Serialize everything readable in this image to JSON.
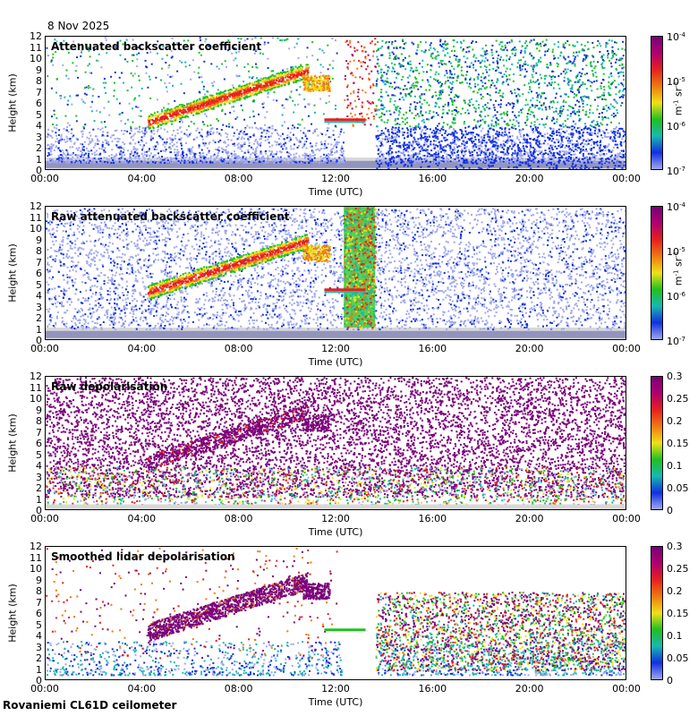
{
  "date": "8 Nov 2025",
  "station": "Rovaniemi CL61D ceilometer",
  "colors": {
    "purple": "#7a007a",
    "magenta": "#b0006e",
    "red": "#e8201e",
    "orange": "#f07a10",
    "yellow": "#f0e018",
    "green": "#20c020",
    "cyan": "#18b8b0",
    "blue": "#1030e0",
    "navy": "#101890",
    "lightblue": "#a0a8f0",
    "gray": "#d8d8d8"
  },
  "chart_data": [
    {
      "type": "heatmap",
      "title": "Attenuated backscatter coefficient",
      "xlabel": "Time (UTC)",
      "ylabel": "Height (km)",
      "x_ticks": [
        "00:00",
        "04:00",
        "08:00",
        "12:00",
        "16:00",
        "20:00",
        "00:00"
      ],
      "y_ticks": [
        "0",
        "1",
        "2",
        "3",
        "4",
        "5",
        "6",
        "7",
        "8",
        "9",
        "10",
        "11",
        "12"
      ],
      "ylim": [
        0,
        12
      ],
      "colorbar": {
        "scale": "log",
        "range": [
          1e-07,
          0.0001
        ],
        "labels": [
          {
            "base": "10",
            "exp": "-4"
          },
          {
            "base": "10",
            "exp": "-5"
          },
          {
            "base": "10",
            "exp": "-6"
          },
          {
            "base": "10",
            "exp": "-7"
          }
        ],
        "unit": {
          "m": "m",
          "m_exp": "-1",
          "sr": "sr",
          "sr_exp": "-1"
        }
      }
    },
    {
      "type": "heatmap",
      "title": "Raw attenuated backscatter coefficient",
      "xlabel": "Time (UTC)",
      "ylabel": "Height (km)",
      "x_ticks": [
        "00:00",
        "04:00",
        "08:00",
        "12:00",
        "16:00",
        "20:00",
        "00:00"
      ],
      "y_ticks": [
        "0",
        "1",
        "2",
        "3",
        "4",
        "5",
        "6",
        "7",
        "8",
        "9",
        "10",
        "11",
        "12"
      ],
      "ylim": [
        0,
        12
      ],
      "colorbar": {
        "scale": "log",
        "range": [
          1e-07,
          0.0001
        ],
        "labels": [
          {
            "base": "10",
            "exp": "-4"
          },
          {
            "base": "10",
            "exp": "-5"
          },
          {
            "base": "10",
            "exp": "-6"
          },
          {
            "base": "10",
            "exp": "-7"
          }
        ],
        "unit": {
          "m": "m",
          "m_exp": "-1",
          "sr": "sr",
          "sr_exp": "-1"
        }
      }
    },
    {
      "type": "heatmap",
      "title": "Raw depolarisation",
      "xlabel": "Time (UTC)",
      "ylabel": "Height (km)",
      "x_ticks": [
        "00:00",
        "04:00",
        "08:00",
        "12:00",
        "16:00",
        "20:00",
        "00:00"
      ],
      "y_ticks": [
        "0",
        "1",
        "2",
        "3",
        "4",
        "5",
        "6",
        "7",
        "8",
        "9",
        "10",
        "11",
        "12"
      ],
      "ylim": [
        0,
        12
      ],
      "colorbar": {
        "scale": "linear",
        "range": [
          0,
          0.3
        ],
        "labels": [
          "0.3",
          "0.25",
          "0.2",
          "0.15",
          "0.1",
          "0.05",
          "0"
        ]
      }
    },
    {
      "type": "heatmap",
      "title": "Smoothed lidar depolarisation",
      "xlabel": "Time (UTC)",
      "ylabel": "Height (km)",
      "x_ticks": [
        "00:00",
        "04:00",
        "08:00",
        "12:00",
        "16:00",
        "20:00",
        "00:00"
      ],
      "y_ticks": [
        "0",
        "1",
        "2",
        "3",
        "4",
        "5",
        "6",
        "7",
        "8",
        "9",
        "10",
        "11",
        "12"
      ],
      "ylim": [
        0,
        12
      ],
      "colorbar": {
        "scale": "linear",
        "range": [
          0,
          0.3
        ],
        "labels": [
          "0.3",
          "0.25",
          "0.2",
          "0.15",
          "0.1",
          "0.05",
          "0"
        ]
      }
    }
  ]
}
